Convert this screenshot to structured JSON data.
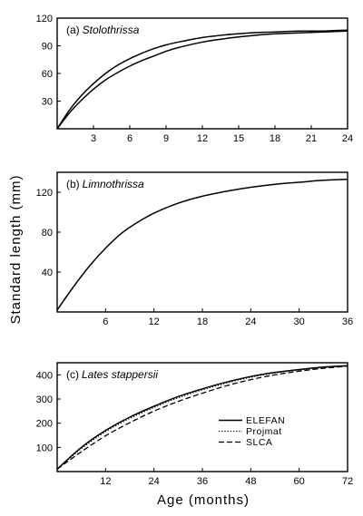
{
  "ylabel": "Standard length (mm)",
  "xlabel": "Age (months)",
  "chart_data": [
    {
      "type": "line",
      "title_prefix": "(a)",
      "title_species": "Stolothrissa",
      "xlim": [
        0,
        24
      ],
      "ylim": [
        0,
        120
      ],
      "xticks": [
        3,
        6,
        9,
        12,
        15,
        18,
        21,
        24
      ],
      "yticks": [
        30,
        60,
        90,
        120
      ],
      "series": [
        {
          "style": "solid",
          "x": [
            0,
            1,
            2,
            3,
            4,
            5,
            6,
            7,
            8,
            9,
            10,
            12,
            14,
            16,
            18,
            20,
            22,
            24
          ],
          "y": [
            0,
            20,
            36,
            49,
            60,
            69,
            76,
            82,
            87,
            91,
            94,
            99,
            102,
            104,
            105,
            106,
            106,
            107
          ]
        },
        {
          "style": "solid",
          "x": [
            0,
            1,
            2,
            3,
            4,
            5,
            6,
            7,
            8,
            9,
            10,
            12,
            14,
            16,
            18,
            20,
            22,
            24
          ],
          "y": [
            0,
            17,
            31,
            43,
            53,
            61,
            68,
            74,
            79,
            84,
            88,
            94,
            98,
            101,
            103,
            104,
            105,
            106
          ]
        }
      ]
    },
    {
      "type": "line",
      "title_prefix": "(b)",
      "title_species": "Limnothrissa",
      "xlim": [
        0,
        36
      ],
      "ylim": [
        0,
        140
      ],
      "xticks": [
        6,
        12,
        18,
        24,
        30,
        36
      ],
      "yticks": [
        40,
        80,
        120
      ],
      "series": [
        {
          "style": "solid",
          "x": [
            0,
            2,
            4,
            6,
            8,
            10,
            12,
            15,
            18,
            21,
            24,
            27,
            30,
            33,
            36
          ],
          "y": [
            2,
            25,
            46,
            64,
            79,
            90,
            99,
            109,
            116,
            121,
            125,
            128,
            130,
            132,
            133
          ]
        }
      ]
    },
    {
      "type": "line",
      "title_prefix": "(c)",
      "title_species": "Lates stappersii",
      "xlim": [
        0,
        72
      ],
      "ylim": [
        0,
        450
      ],
      "xticks": [
        12,
        24,
        36,
        48,
        60,
        72
      ],
      "yticks": [
        100,
        200,
        300,
        400
      ],
      "legend": [
        "ELEFAN",
        "Projmat",
        "SLCA"
      ],
      "series": [
        {
          "name": "ELEFAN",
          "style": "solid",
          "x": [
            0,
            6,
            12,
            18,
            24,
            30,
            36,
            42,
            48,
            54,
            60,
            66,
            72
          ],
          "y": [
            10,
            100,
            170,
            225,
            270,
            310,
            342,
            370,
            393,
            410,
            422,
            432,
            438
          ]
        },
        {
          "name": "Projmat",
          "style": "dotted",
          "x": [
            0,
            6,
            12,
            18,
            24,
            30,
            36,
            42,
            48,
            54,
            60,
            66,
            72
          ],
          "y": [
            10,
            95,
            165,
            220,
            265,
            305,
            338,
            366,
            390,
            408,
            420,
            430,
            437
          ]
        },
        {
          "name": "SLCA",
          "style": "dashed",
          "x": [
            0,
            6,
            12,
            18,
            24,
            30,
            36,
            42,
            48,
            54,
            60,
            66,
            72
          ],
          "y": [
            10,
            82,
            148,
            202,
            250,
            290,
            324,
            355,
            380,
            400,
            415,
            427,
            436
          ]
        }
      ]
    }
  ]
}
